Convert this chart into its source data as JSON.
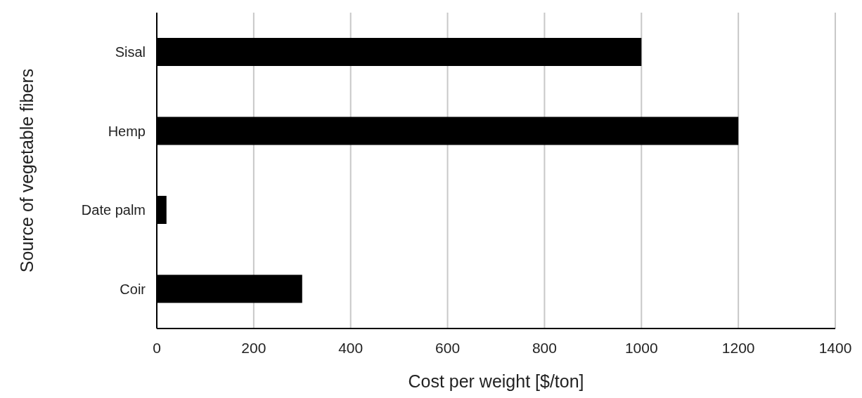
{
  "chart_data": {
    "type": "bar",
    "orientation": "horizontal",
    "xlabel": "Cost per weight [$/ton]",
    "ylabel": "Source of vegetable fibers",
    "categories": [
      "Sisal",
      "Hemp",
      "Date palm",
      "Coir"
    ],
    "values": [
      1000,
      1200,
      20,
      300
    ],
    "color": "#000000",
    "xlim": [
      0,
      1400
    ],
    "xticks": [
      0,
      200,
      400,
      600,
      800,
      1000,
      1200,
      1400
    ],
    "grid": "x"
  }
}
